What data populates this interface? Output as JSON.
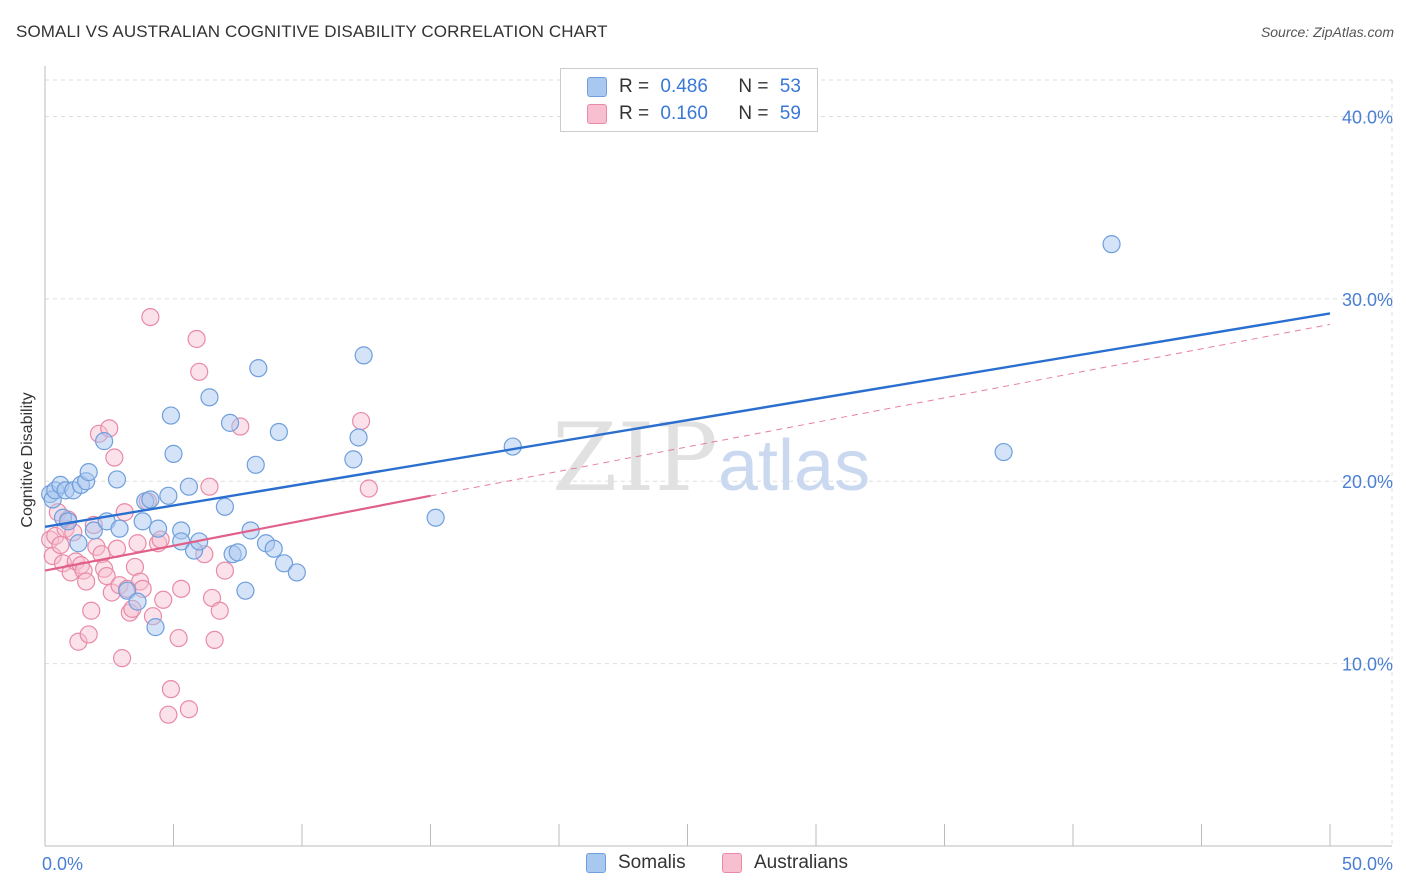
{
  "header": {
    "title": "SOMALI VS AUSTRALIAN COGNITIVE DISABILITY CORRELATION CHART",
    "source": "Source: ZipAtlas.com"
  },
  "watermark": {
    "zip": "ZIP",
    "atlas": "atlas"
  },
  "colors": {
    "somali_fill": "#a9c8f0",
    "somali_stroke": "#6f9fdc",
    "somali_line": "#2a6fcf",
    "australian_fill": "#f7bfd0",
    "australian_stroke": "#e98aa6",
    "australian_line": "#e0608a",
    "tick_text": "#4a7fd4",
    "grid": "#dddddd"
  },
  "legend": {
    "rows": [
      {
        "r_label": "R =",
        "r_value": "0.486",
        "n_label": "N =",
        "n_value": "53"
      },
      {
        "r_label": "R =",
        "r_value": "0.160",
        "n_label": "N =",
        "n_value": "59"
      }
    ],
    "bottom": [
      {
        "label": "Somalis"
      },
      {
        "label": "Australians"
      }
    ]
  },
  "chart_data": {
    "type": "scatter",
    "title": "SOMALI VS AUSTRALIAN COGNITIVE DISABILITY CORRELATION CHART",
    "xlabel": "",
    "ylabel": "Cognitive Disability",
    "xlim": [
      0,
      50
    ],
    "ylim": [
      0,
      42
    ],
    "x_tick_labels": [
      "0.0%",
      "50.0%"
    ],
    "y_ticks": [
      10,
      20,
      30,
      40
    ],
    "y_tick_labels": [
      "10.0%",
      "20.0%",
      "30.0%",
      "40.0%"
    ],
    "series": [
      {
        "name": "Somalis",
        "r": 0.486,
        "n": 53,
        "trend": {
          "x": [
            0,
            50
          ],
          "y": [
            17.5,
            29.2
          ],
          "style": "solid"
        },
        "points": [
          [
            0.2,
            19.3
          ],
          [
            0.3,
            19.0
          ],
          [
            0.4,
            19.5
          ],
          [
            0.6,
            19.8
          ],
          [
            0.7,
            18.0
          ],
          [
            0.8,
            19.5
          ],
          [
            0.9,
            17.8
          ],
          [
            1.1,
            19.5
          ],
          [
            1.3,
            16.6
          ],
          [
            1.4,
            19.8
          ],
          [
            1.6,
            20.0
          ],
          [
            1.7,
            20.5
          ],
          [
            1.9,
            17.3
          ],
          [
            2.3,
            22.2
          ],
          [
            2.4,
            17.8
          ],
          [
            2.9,
            17.4
          ],
          [
            2.8,
            20.1
          ],
          [
            3.2,
            14.0
          ],
          [
            3.6,
            13.4
          ],
          [
            3.8,
            17.8
          ],
          [
            3.9,
            18.9
          ],
          [
            4.1,
            19.0
          ],
          [
            4.3,
            12.0
          ],
          [
            4.4,
            17.4
          ],
          [
            4.8,
            19.2
          ],
          [
            4.9,
            23.6
          ],
          [
            5.0,
            21.5
          ],
          [
            5.3,
            17.3
          ],
          [
            5.3,
            16.7
          ],
          [
            5.6,
            19.7
          ],
          [
            5.8,
            16.2
          ],
          [
            6.0,
            16.7
          ],
          [
            6.4,
            24.6
          ],
          [
            7.0,
            18.6
          ],
          [
            7.2,
            23.2
          ],
          [
            7.3,
            16.0
          ],
          [
            7.5,
            16.1
          ],
          [
            7.8,
            14.0
          ],
          [
            8.0,
            17.3
          ],
          [
            8.2,
            20.9
          ],
          [
            8.3,
            26.2
          ],
          [
            8.6,
            16.6
          ],
          [
            8.9,
            16.3
          ],
          [
            9.1,
            22.7
          ],
          [
            9.3,
            15.5
          ],
          [
            9.8,
            15.0
          ],
          [
            12.0,
            21.2
          ],
          [
            12.2,
            22.4
          ],
          [
            12.4,
            26.9
          ],
          [
            15.2,
            18.0
          ],
          [
            18.2,
            21.9
          ],
          [
            37.3,
            21.6
          ],
          [
            41.5,
            33.0
          ]
        ]
      },
      {
        "name": "Australians",
        "r": 0.16,
        "n": 59,
        "trend": {
          "x": [
            0,
            15
          ],
          "y": [
            15.1,
            19.2
          ],
          "style": "solid",
          "extension": {
            "x": [
              15,
              50
            ],
            "y": [
              19.2,
              28.6
            ],
            "style": "dashed"
          }
        },
        "points": [
          [
            0.2,
            16.8
          ],
          [
            0.3,
            15.9
          ],
          [
            0.4,
            17.0
          ],
          [
            0.5,
            18.3
          ],
          [
            0.6,
            16.5
          ],
          [
            0.7,
            15.5
          ],
          [
            0.8,
            17.4
          ],
          [
            0.9,
            17.9
          ],
          [
            1.0,
            15.0
          ],
          [
            1.1,
            17.2
          ],
          [
            1.2,
            15.6
          ],
          [
            1.3,
            11.2
          ],
          [
            1.4,
            15.4
          ],
          [
            1.5,
            15.1
          ],
          [
            1.6,
            14.5
          ],
          [
            1.7,
            11.6
          ],
          [
            1.8,
            12.9
          ],
          [
            1.9,
            17.6
          ],
          [
            2.0,
            16.4
          ],
          [
            2.1,
            22.6
          ],
          [
            2.2,
            16.0
          ],
          [
            2.3,
            15.2
          ],
          [
            2.4,
            14.8
          ],
          [
            2.5,
            22.9
          ],
          [
            2.6,
            13.9
          ],
          [
            2.7,
            21.3
          ],
          [
            2.8,
            16.3
          ],
          [
            2.9,
            14.3
          ],
          [
            3.0,
            10.3
          ],
          [
            3.1,
            18.3
          ],
          [
            3.2,
            14.1
          ],
          [
            3.3,
            12.8
          ],
          [
            3.4,
            13.0
          ],
          [
            3.5,
            15.3
          ],
          [
            3.6,
            16.6
          ],
          [
            3.7,
            14.5
          ],
          [
            3.8,
            14.1
          ],
          [
            4.0,
            18.9
          ],
          [
            4.1,
            29.0
          ],
          [
            4.2,
            12.6
          ],
          [
            4.4,
            16.6
          ],
          [
            4.5,
            16.8
          ],
          [
            4.6,
            13.5
          ],
          [
            4.8,
            7.2
          ],
          [
            4.9,
            8.6
          ],
          [
            5.2,
            11.4
          ],
          [
            5.3,
            14.1
          ],
          [
            5.6,
            7.5
          ],
          [
            5.9,
            27.8
          ],
          [
            6.0,
            26.0
          ],
          [
            6.2,
            16.0
          ],
          [
            6.4,
            19.7
          ],
          [
            6.5,
            13.6
          ],
          [
            6.6,
            11.3
          ],
          [
            6.8,
            12.9
          ],
          [
            7.0,
            15.1
          ],
          [
            7.6,
            23.0
          ],
          [
            12.3,
            23.3
          ],
          [
            12.6,
            19.6
          ]
        ]
      }
    ]
  }
}
